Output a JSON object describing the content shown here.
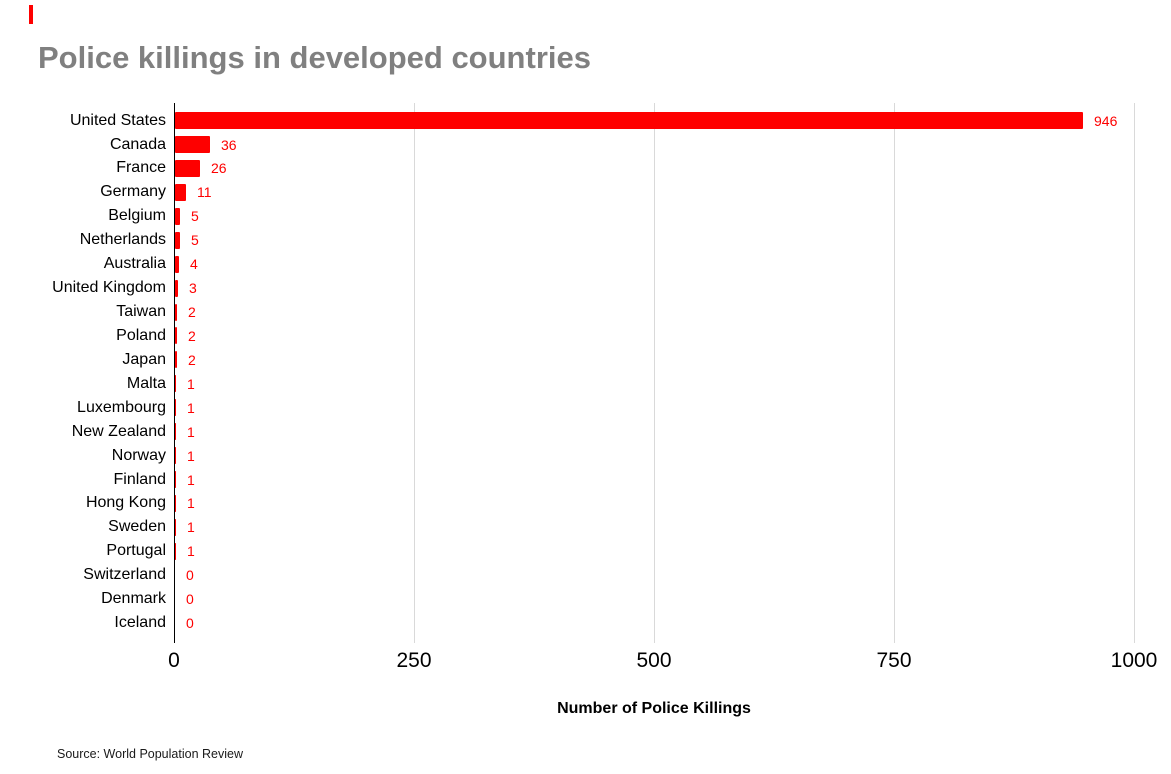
{
  "title": "Police killings in developed countries",
  "source_note": "Source: World Population Review",
  "colors": {
    "bar": "#fe0000",
    "value_label": "#fe0000",
    "title": "#808080",
    "gridline": "#d9d9d9",
    "axis_line": "#000000",
    "accent_dash": "#fe0000"
  },
  "chart_data": {
    "type": "bar",
    "orientation": "horizontal",
    "title": "Police killings in developed countries",
    "xlabel": "Number of Police Killings",
    "ylabel": "",
    "xlim": [
      0,
      1000
    ],
    "xticks": [
      0,
      250,
      500,
      750,
      1000
    ],
    "grid": true,
    "legend": false,
    "value_labels": true,
    "categories": [
      "United States",
      "Canada",
      "France",
      "Germany",
      "Belgium",
      "Netherlands",
      "Australia",
      "United Kingdom",
      "Taiwan",
      "Poland",
      "Japan",
      "Malta",
      "Luxembourg",
      "New Zealand",
      "Norway",
      "Finland",
      "Hong Kong",
      "Sweden",
      "Portugal",
      "Switzerland",
      "Denmark",
      "Iceland"
    ],
    "values": [
      946,
      36,
      26,
      11,
      5,
      5,
      4,
      3,
      2,
      2,
      2,
      1,
      1,
      1,
      1,
      1,
      1,
      1,
      1,
      0,
      0,
      0
    ]
  }
}
